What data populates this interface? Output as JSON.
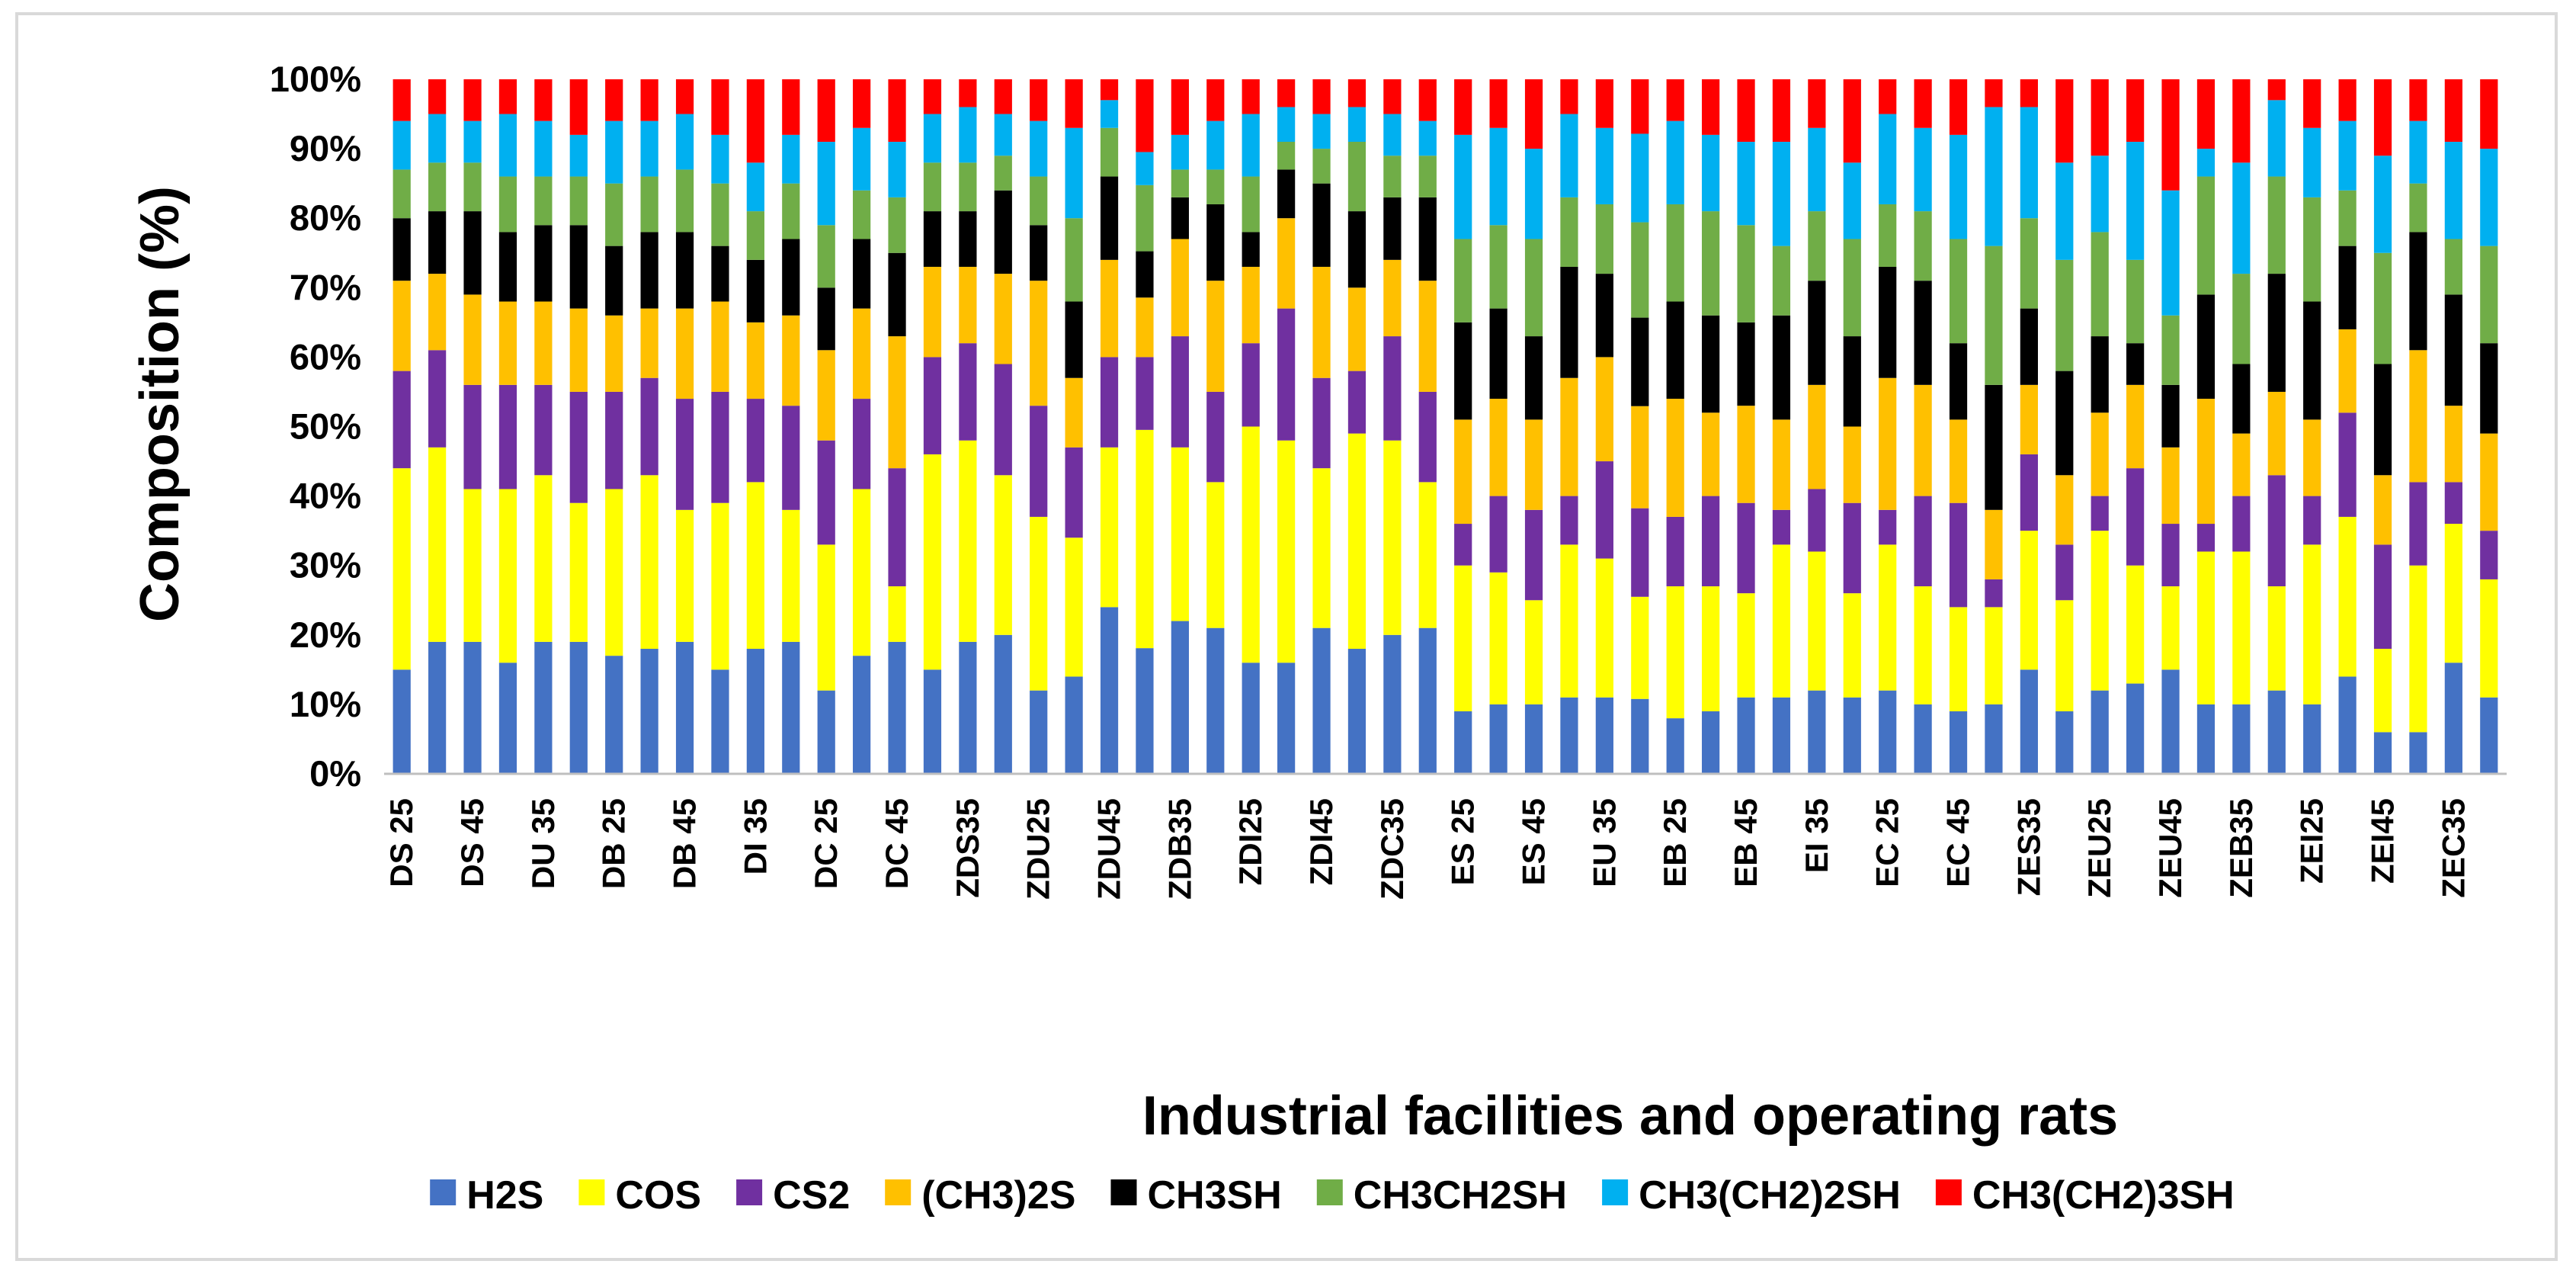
{
  "chart_data": {
    "type": "bar",
    "stacked": "percent",
    "xlabel": "Industrial facilities and operating rats",
    "ylabel": "Composition (%)",
    "ylim": [
      0,
      100
    ],
    "y_ticks": [
      "0%",
      "10%",
      "20%",
      "30%",
      "40%",
      "50%",
      "60%",
      "70%",
      "80%",
      "90%",
      "100%"
    ],
    "grid": false,
    "legend_position": "bottom",
    "categories": [
      "DS 25",
      "DS 35",
      "DS 45",
      "DU 25",
      "DU 35",
      "DU 45",
      "DB 25",
      "DB 35",
      "DB 45",
      "DI 25",
      "DI 35",
      "DI 45",
      "DC 25",
      "DC 35",
      "DC 45",
      "ZDS25",
      "ZDS35",
      "ZDS45",
      "ZDU25",
      "ZDU35",
      "ZDU45",
      "ZDB25",
      "ZDB35",
      "ZDB45",
      "ZDI25",
      "ZDI35",
      "ZDI45",
      "ZDC25",
      "ZDC35",
      "ZDC45",
      "ES 25",
      "ES 35",
      "ES 45",
      "EU 25",
      "EU 35",
      "EU 45",
      "EB 25",
      "EB 35",
      "EB 45",
      "EI 25",
      "EI 35",
      "EI 45",
      "EC 25",
      "EC 35",
      "EC 45",
      "ZES25",
      "ZES35",
      "ZES45",
      "ZEU25",
      "ZEU35",
      "ZEU45",
      "ZEB25",
      "ZEB35",
      "ZEB45",
      "ZEI25",
      "ZEI35",
      "ZEI45",
      "ZEC25",
      "ZEC35",
      "ZEC45"
    ],
    "visible_tick_labels": [
      "DS 25",
      "DS 45",
      "DU 35",
      "DB 25",
      "DB 45",
      "DI 35",
      "DC 25",
      "DC 45",
      "ZDS35",
      "ZDU25",
      "ZDU45",
      "ZDB35",
      "ZDI25",
      "ZDI45",
      "ZDC35",
      "ES 25",
      "ES 45",
      "EU 35",
      "EB 25",
      "EB 45",
      "EI 35",
      "EC 25",
      "EC 45",
      "ZES35",
      "ZEU25",
      "ZEU45",
      "ZEB35",
      "ZEI25",
      "ZEI45",
      "ZEC35"
    ],
    "series": [
      {
        "name": "H2S",
        "color": "#4472C4",
        "values": [
          15,
          19,
          19,
          16,
          19,
          19,
          17,
          18,
          19,
          15,
          18,
          19,
          12,
          17,
          19,
          15,
          19,
          20,
          12,
          14,
          24,
          19,
          22,
          21,
          16,
          16,
          21,
          18,
          20,
          21,
          9,
          10,
          10,
          11,
          11,
          11,
          8,
          9,
          11,
          11,
          12,
          11,
          12,
          10,
          9,
          10,
          15,
          9,
          12,
          13,
          15,
          10,
          10,
          12,
          10,
          14,
          6,
          6,
          16,
          11
        ]
      },
      {
        "name": "COS",
        "color": "#FFFF00",
        "values": [
          29,
          28,
          22,
          25,
          24,
          20,
          24,
          25,
          19,
          24,
          24,
          19,
          21,
          24,
          8,
          31,
          29,
          23,
          25,
          20,
          23,
          33,
          25,
          21,
          34,
          32,
          23,
          31,
          28,
          21,
          21,
          19,
          15,
          22,
          20,
          15,
          19,
          18,
          15,
          22,
          20,
          15,
          21,
          17,
          15,
          14,
          20,
          16,
          23,
          17,
          12,
          22,
          22,
          15,
          23,
          23,
          12,
          24,
          20,
          17
        ]
      },
      {
        "name": "CS2",
        "color": "#7030A0",
        "values": [
          14,
          14,
          15,
          15,
          13,
          16,
          14,
          14,
          16,
          16,
          12,
          15,
          15,
          13,
          17,
          14,
          14,
          16,
          16,
          13,
          13,
          11,
          16,
          13,
          12,
          19,
          13,
          9,
          15,
          13,
          6,
          11,
          13,
          7,
          14,
          13,
          10,
          13,
          13,
          5,
          9,
          13,
          5,
          13,
          15,
          4,
          11,
          8,
          5,
          14,
          9,
          4,
          8,
          16,
          7,
          15,
          15,
          12,
          6,
          7
        ]
      },
      {
        "name": "(CH3)2S",
        "color": "#FFC000",
        "values": [
          13,
          11,
          13,
          12,
          12,
          12,
          11,
          10,
          13,
          13,
          11,
          13,
          13,
          13,
          19,
          13,
          11,
          13,
          18,
          10,
          14,
          9,
          14,
          16,
          11,
          13,
          16,
          12,
          11,
          16,
          15,
          14,
          13,
          17,
          15,
          15,
          17,
          12,
          14,
          13,
          15,
          11,
          19,
          16,
          12,
          10,
          10,
          10,
          12,
          12,
          11,
          18,
          9,
          12,
          11,
          12,
          10,
          19,
          11,
          14
        ]
      },
      {
        "name": "CH3SH",
        "color": "#000000",
        "values": [
          9,
          9,
          12,
          10,
          11,
          12,
          10,
          11,
          11,
          8,
          9,
          11,
          9,
          10,
          12,
          8,
          8,
          12,
          8,
          11,
          12,
          7,
          6,
          11,
          5,
          7,
          12,
          11,
          9,
          12,
          14,
          13,
          12,
          16,
          12,
          13,
          14,
          14,
          12,
          15,
          15,
          13,
          16,
          15,
          11,
          18,
          11,
          15,
          11,
          6,
          9,
          15,
          10,
          17,
          17,
          12,
          16,
          17,
          16,
          13
        ]
      },
      {
        "name": "CH3CH2SH",
        "color": "#70AD47",
        "values": [
          7,
          7,
          7,
          8,
          7,
          7,
          9,
          8,
          9,
          9,
          7,
          8,
          9,
          7,
          8,
          7,
          7,
          5,
          7,
          12,
          7,
          10,
          4,
          5,
          8,
          4,
          5,
          10,
          6,
          6,
          12,
          12,
          14,
          10,
          10,
          14,
          14,
          15,
          14,
          10,
          10,
          14,
          9,
          10,
          15,
          20,
          13,
          16,
          15,
          12,
          10,
          17,
          13,
          14,
          15,
          8,
          16,
          7,
          8,
          14
        ]
      },
      {
        "name": "CH3(CH2)2SH",
        "color": "#00B0F0",
        "values": [
          7,
          7,
          6,
          9,
          8,
          6,
          9,
          8,
          8,
          7,
          7,
          7,
          12,
          9,
          8,
          7,
          8,
          6,
          8,
          13,
          4,
          5,
          5,
          7,
          9,
          5,
          5,
          5,
          6,
          5,
          15,
          14,
          13,
          12,
          11,
          13,
          12,
          11,
          12,
          15,
          12,
          11,
          13,
          12,
          15,
          20,
          16,
          14,
          11,
          17,
          18,
          4,
          16,
          11,
          10,
          10,
          14,
          9,
          14,
          14
        ]
      },
      {
        "name": "CH3(CH2)3SH",
        "color": "#FF0000",
        "values": [
          6,
          5,
          6,
          5,
          6,
          8,
          6,
          6,
          5,
          8,
          12,
          8,
          9,
          7,
          9,
          5,
          4,
          5,
          6,
          7,
          3,
          11,
          8,
          6,
          5,
          4,
          5,
          4,
          5,
          6,
          8,
          7,
          10,
          5,
          7,
          8,
          6,
          8,
          9,
          9,
          7,
          12,
          5,
          7,
          8,
          4,
          4,
          12,
          11,
          9,
          16,
          10,
          12,
          3,
          7,
          6,
          11,
          6,
          9,
          10
        ]
      }
    ]
  }
}
